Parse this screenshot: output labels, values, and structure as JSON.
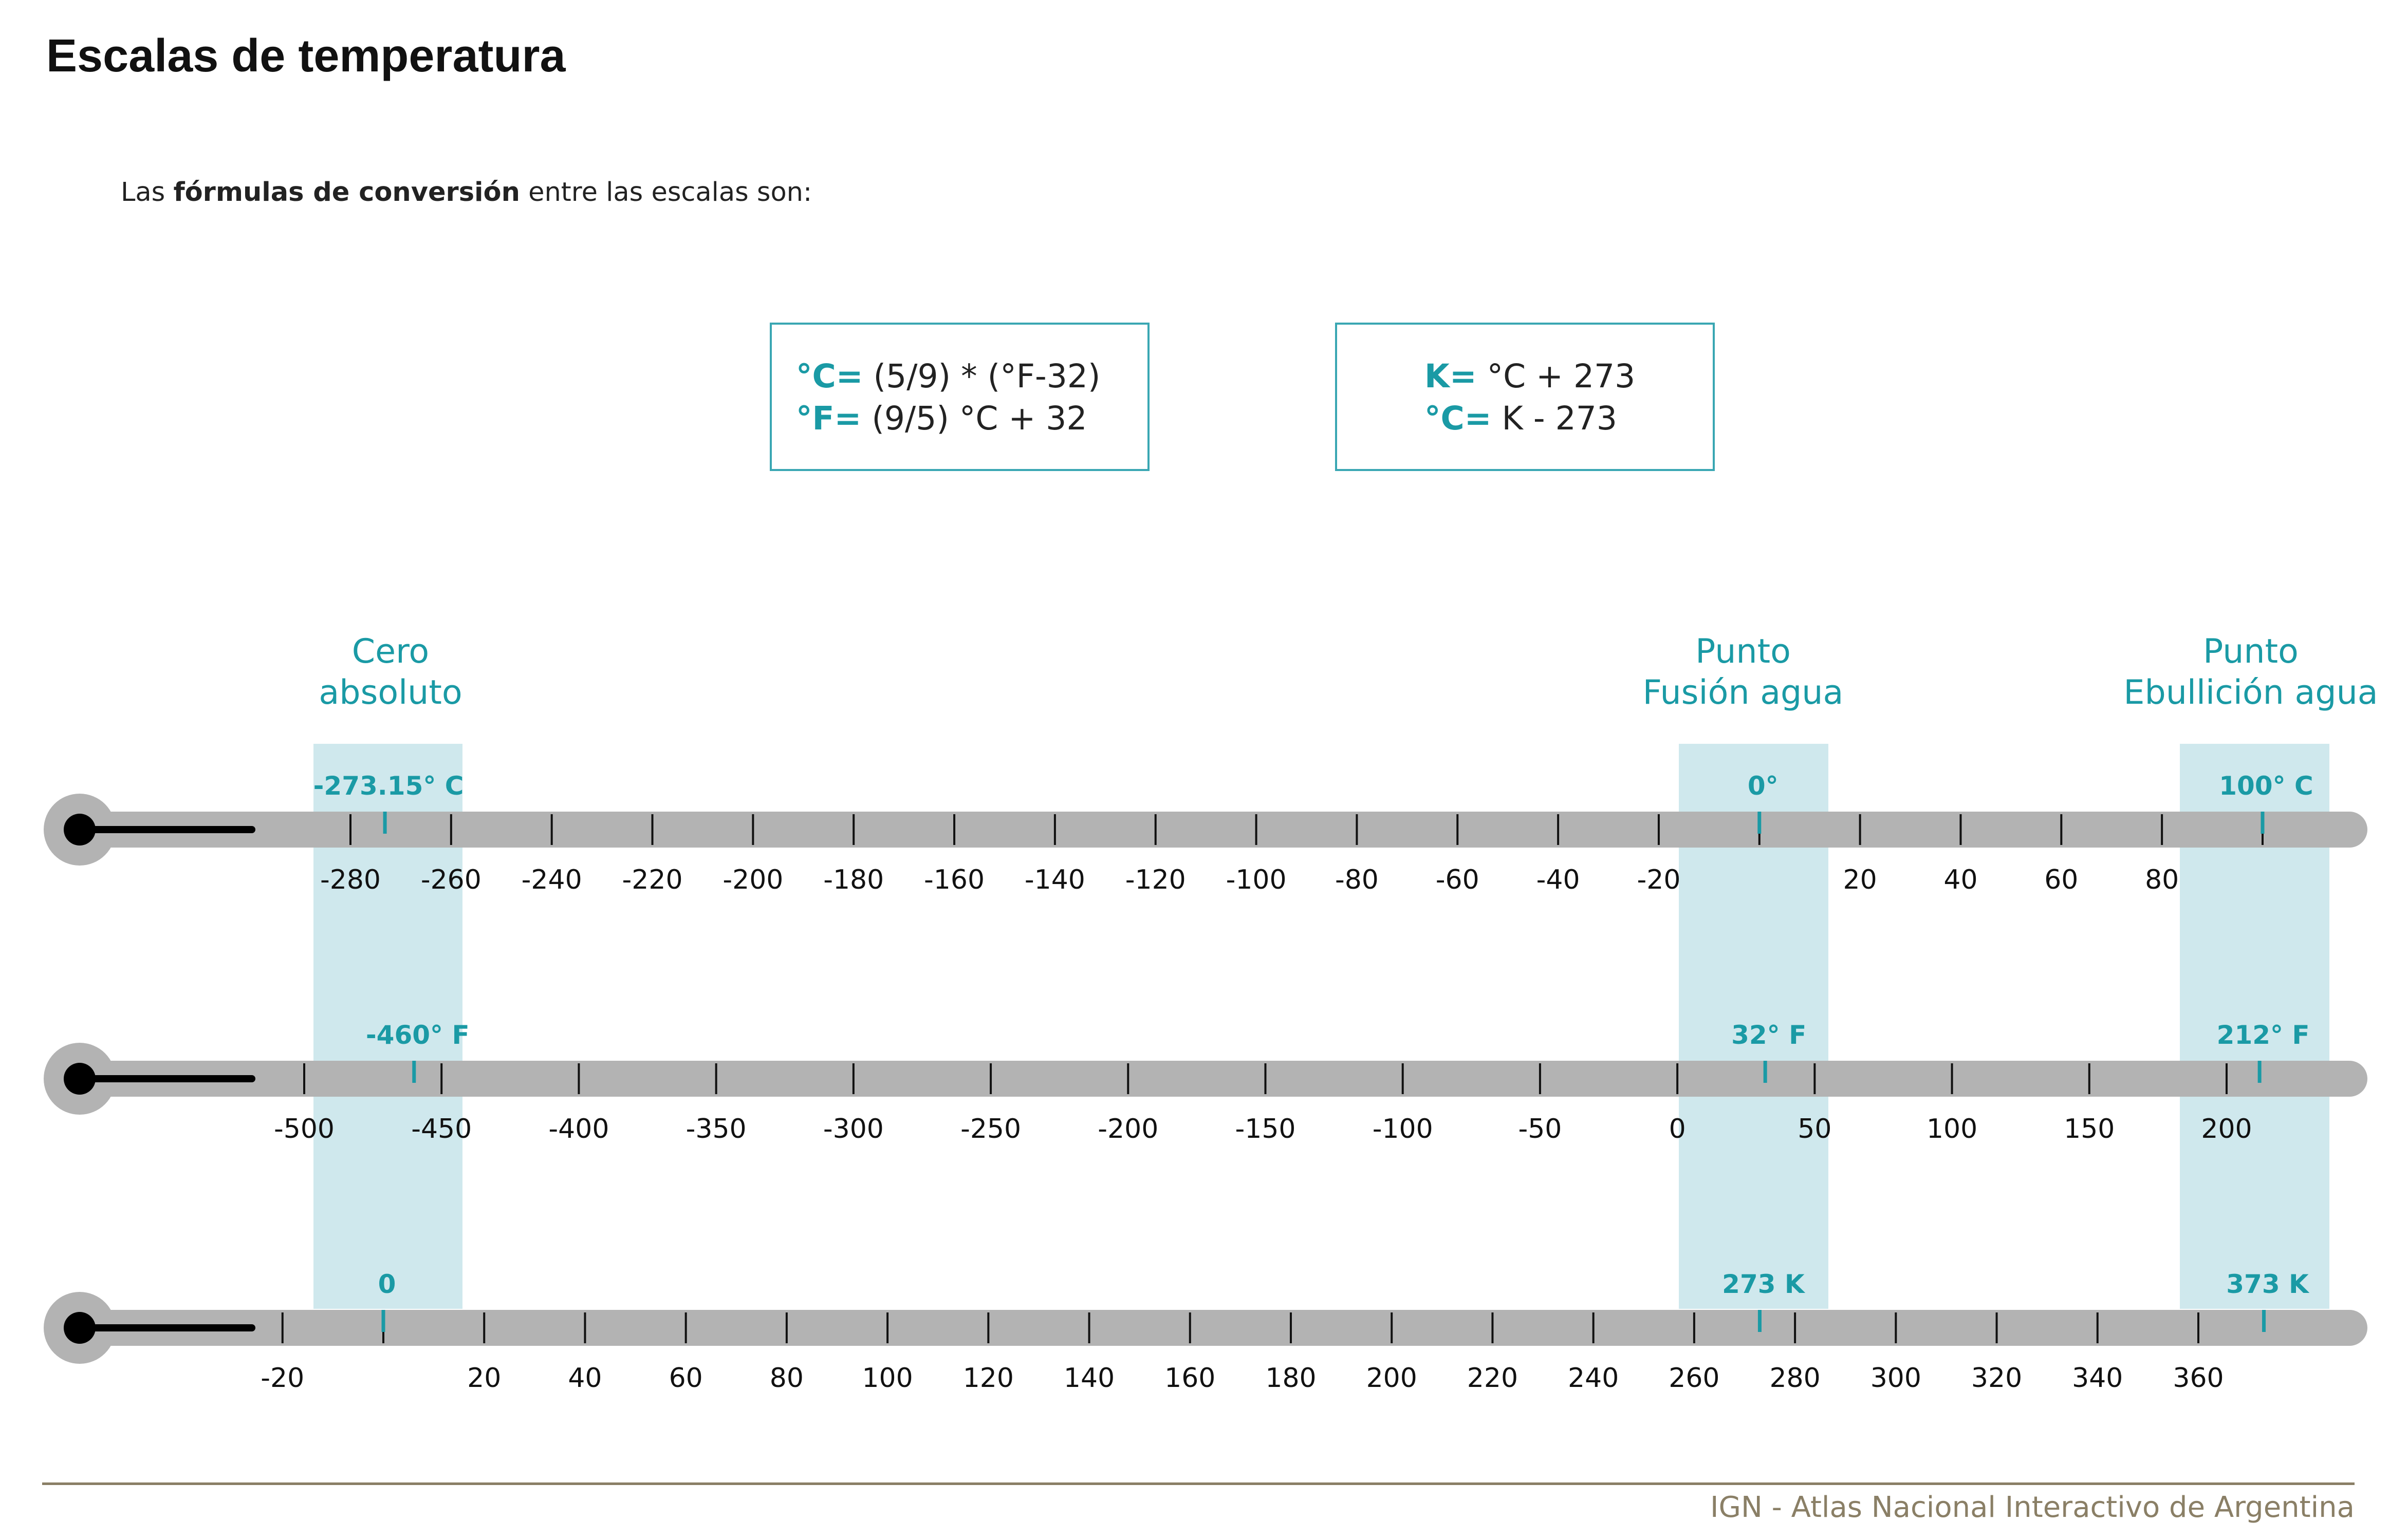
{
  "title": "Escalas de temperatura",
  "intro": {
    "before": "Las ",
    "bold": "fórmulas de conversión",
    "after": " entre las escalas son:"
  },
  "formulas": [
    {
      "lines": [
        {
          "label": "°C=",
          "expr": " (5/9) * (°F-32)"
        },
        {
          "label": "°F=",
          "expr": " (9/5) °C + 32"
        }
      ]
    },
    {
      "lines": [
        {
          "label": "K=",
          "expr": " °C + 273"
        },
        {
          "label": "°C=",
          "expr": " K - 273"
        }
      ]
    }
  ],
  "reference_points": [
    {
      "title": [
        "Cero",
        "absoluto"
      ]
    },
    {
      "title": [
        "Punto",
        "Fusión agua"
      ]
    },
    {
      "title": [
        "Punto",
        "Ebullición agua"
      ]
    }
  ],
  "scales": [
    {
      "unit": "Celsius",
      "ticks": [
        -280,
        -260,
        -240,
        -220,
        -200,
        -180,
        -160,
        -140,
        -120,
        -100,
        -80,
        -60,
        -40,
        -20,
        0,
        20,
        40,
        60,
        80,
        100
      ],
      "labels": [
        "-280",
        "-260",
        "-240",
        "-220",
        "-200",
        "-180",
        "-160",
        "-140",
        "-120",
        "-100",
        "-80",
        "-60",
        "-40",
        "-20",
        "",
        "20",
        "40",
        "60",
        "80",
        ""
      ],
      "markers": [
        {
          "value": -273.15,
          "label": "-273.15° C"
        },
        {
          "value": 0,
          "label": "0°"
        },
        {
          "value": 100,
          "label": "100° C"
        }
      ]
    },
    {
      "unit": "Fahrenheit",
      "ticks": [
        -500,
        -450,
        -400,
        -350,
        -300,
        -250,
        -200,
        -150,
        -100,
        -50,
        0,
        50,
        100,
        150,
        200
      ],
      "labels": [
        "-500",
        "-450",
        "-400",
        "-350",
        "-300",
        "-250",
        "-200",
        "-150",
        "-100",
        "-50",
        "0",
        "50",
        "100",
        "150",
        "200"
      ],
      "markers": [
        {
          "value": -460,
          "label": "-460° F"
        },
        {
          "value": 32,
          "label": "32° F"
        },
        {
          "value": 212,
          "label": "212° F"
        }
      ]
    },
    {
      "unit": "Kelvin",
      "ticks": [
        -20,
        0,
        20,
        40,
        60,
        80,
        100,
        120,
        140,
        160,
        180,
        200,
        220,
        240,
        260,
        280,
        300,
        320,
        340,
        360
      ],
      "labels": [
        "-20",
        "",
        "20",
        "40",
        "60",
        "80",
        "100",
        "120",
        "140",
        "160",
        "180",
        "200",
        "220",
        "240",
        "260",
        "280",
        "300",
        "320",
        "340",
        "360"
      ],
      "markers": [
        {
          "value": 0,
          "label": "0"
        },
        {
          "value": 273,
          "label": "273 K"
        },
        {
          "value": 373,
          "label": "373 K"
        }
      ]
    }
  ],
  "footer": "IGN - Atlas Nacional Interactivo de Argentina",
  "colors": {
    "accent": "#1a9aa5",
    "band": "#cfe8ed",
    "bar": "#b3b3b3",
    "footer": "#8a7f66"
  }
}
